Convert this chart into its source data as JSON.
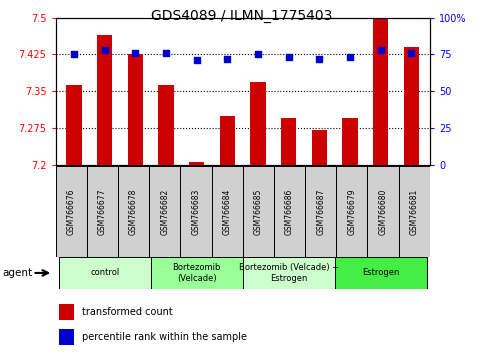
{
  "title": "GDS4089 / ILMN_1775403",
  "samples": [
    "GSM766676",
    "GSM766677",
    "GSM766678",
    "GSM766682",
    "GSM766683",
    "GSM766684",
    "GSM766685",
    "GSM766686",
    "GSM766687",
    "GSM766679",
    "GSM766680",
    "GSM766681"
  ],
  "red_values": [
    7.362,
    7.465,
    7.425,
    7.362,
    7.205,
    7.3,
    7.368,
    7.295,
    7.27,
    7.295,
    7.5,
    7.44
  ],
  "blue_values": [
    75,
    78,
    76,
    76,
    71,
    72,
    75,
    73,
    72,
    73,
    78,
    76
  ],
  "ylim_left": [
    7.2,
    7.5
  ],
  "ylim_right": [
    0,
    100
  ],
  "yticks_left": [
    7.2,
    7.275,
    7.35,
    7.425,
    7.5
  ],
  "yticks_right": [
    0,
    25,
    50,
    75,
    100
  ],
  "hlines": [
    7.275,
    7.35,
    7.425
  ],
  "bar_color": "#cc0000",
  "dot_color": "#0000cc",
  "agent_groups": [
    {
      "label": "control",
      "start": 0,
      "end": 3,
      "color": "#ccffcc"
    },
    {
      "label": "Bortezomib\n(Velcade)",
      "start": 3,
      "end": 6,
      "color": "#99ff99"
    },
    {
      "label": "Bortezomib (Velcade) +\nEstrogen",
      "start": 6,
      "end": 9,
      "color": "#ccffcc"
    },
    {
      "label": "Estrogen",
      "start": 9,
      "end": 12,
      "color": "#44ee44"
    }
  ],
  "legend_red": "transformed count",
  "legend_blue": "percentile rank within the sample",
  "agent_label": "agent",
  "bar_width": 0.5,
  "title_fontsize": 10
}
